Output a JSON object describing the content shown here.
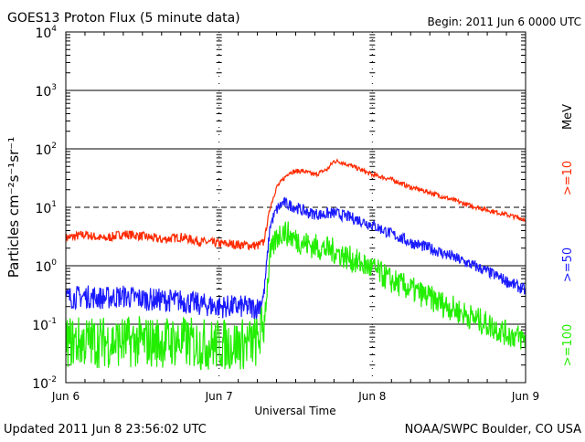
{
  "chart_data": {
    "type": "line",
    "title": "GOES13 Proton Flux (5 minute data)",
    "begin_label": "Begin: 2011 Jun 6 0000 UTC",
    "xlabel": "Universal Time",
    "ylabel": "Particles cm⁻²s⁻¹sr⁻¹",
    "yscale": "log",
    "ylim": [
      0.01,
      10000
    ],
    "xlim_hours": [
      0,
      72
    ],
    "x_ticks": [
      {
        "hour": 0,
        "label": "Jun 6"
      },
      {
        "hour": 24,
        "label": "Jun 7"
      },
      {
        "hour": 48,
        "label": "Jun 8"
      },
      {
        "hour": 72,
        "label": "Jun 9"
      }
    ],
    "y_ticks": [
      {
        "value": 10000,
        "base": "10",
        "exp": "4"
      },
      {
        "value": 1000,
        "base": "10",
        "exp": "3"
      },
      {
        "value": 100,
        "base": "10",
        "exp": "2"
      },
      {
        "value": 10,
        "base": "10",
        "exp": "1"
      },
      {
        "value": 1,
        "base": "10",
        "exp": "0"
      },
      {
        "value": 0.1,
        "base": "10",
        "exp": "-1"
      },
      {
        "value": 0.01,
        "base": "10",
        "exp": "-2"
      }
    ],
    "threshold_line": 10,
    "units_label": "MeV",
    "series": [
      {
        "name": ">=10",
        "color": "#ff2a00",
        "noise": 0.08,
        "points": [
          [
            0,
            3.0
          ],
          [
            3,
            3.4
          ],
          [
            6,
            2.9
          ],
          [
            9,
            3.5
          ],
          [
            12,
            3.2
          ],
          [
            15,
            2.8
          ],
          [
            18,
            3.1
          ],
          [
            21,
            2.6
          ],
          [
            24,
            2.4
          ],
          [
            27,
            2.3
          ],
          [
            30,
            2.2
          ],
          [
            31,
            2.5
          ],
          [
            32,
            10
          ],
          [
            33,
            22
          ],
          [
            35,
            40
          ],
          [
            37,
            42
          ],
          [
            39,
            36
          ],
          [
            41,
            45
          ],
          [
            42,
            62
          ],
          [
            43,
            60
          ],
          [
            45,
            50
          ],
          [
            47,
            40
          ],
          [
            48,
            36
          ],
          [
            51,
            30
          ],
          [
            54,
            22
          ],
          [
            57,
            18
          ],
          [
            60,
            14
          ],
          [
            63,
            11
          ],
          [
            66,
            9
          ],
          [
            69,
            7.5
          ],
          [
            72,
            6.2
          ]
        ]
      },
      {
        "name": ">=50",
        "color": "#1a1aff",
        "noise": 0.2,
        "points": [
          [
            0,
            0.28
          ],
          [
            3,
            0.3
          ],
          [
            6,
            0.28
          ],
          [
            9,
            0.3
          ],
          [
            12,
            0.27
          ],
          [
            15,
            0.26
          ],
          [
            18,
            0.25
          ],
          [
            21,
            0.22
          ],
          [
            24,
            0.2
          ],
          [
            27,
            0.2
          ],
          [
            30,
            0.19
          ],
          [
            31,
            0.3
          ],
          [
            32,
            5
          ],
          [
            33,
            9
          ],
          [
            34,
            12
          ],
          [
            36,
            10
          ],
          [
            38,
            8
          ],
          [
            40,
            7.5
          ],
          [
            42,
            8
          ],
          [
            44,
            7
          ],
          [
            46,
            6
          ],
          [
            48,
            5
          ],
          [
            51,
            3.5
          ],
          [
            54,
            2.5
          ],
          [
            57,
            2
          ],
          [
            60,
            1.5
          ],
          [
            63,
            1.1
          ],
          [
            66,
            0.8
          ],
          [
            69,
            0.55
          ],
          [
            72,
            0.38
          ]
        ]
      },
      {
        "name": ">=100",
        "color": "#22ee00",
        "noise": 0.45,
        "points": [
          [
            0,
            0.05
          ],
          [
            3,
            0.05
          ],
          [
            6,
            0.05
          ],
          [
            9,
            0.05
          ],
          [
            12,
            0.05
          ],
          [
            15,
            0.05
          ],
          [
            18,
            0.05
          ],
          [
            21,
            0.045
          ],
          [
            24,
            0.045
          ],
          [
            27,
            0.045
          ],
          [
            30,
            0.05
          ],
          [
            31,
            0.1
          ],
          [
            32,
            1.5
          ],
          [
            33,
            3
          ],
          [
            34,
            4
          ],
          [
            36,
            2.8
          ],
          [
            38,
            2.3
          ],
          [
            40,
            2.0
          ],
          [
            42,
            1.8
          ],
          [
            44,
            1.4
          ],
          [
            46,
            1.1
          ],
          [
            48,
            0.9
          ],
          [
            51,
            0.55
          ],
          [
            54,
            0.4
          ],
          [
            57,
            0.28
          ],
          [
            60,
            0.2
          ],
          [
            63,
            0.14
          ],
          [
            66,
            0.1
          ],
          [
            69,
            0.07
          ],
          [
            72,
            0.055
          ]
        ]
      }
    ]
  },
  "footer": {
    "updated": "Updated 2011 Jun  8 23:56:02 UTC",
    "source": "NOAA/SWPC Boulder, CO USA"
  }
}
